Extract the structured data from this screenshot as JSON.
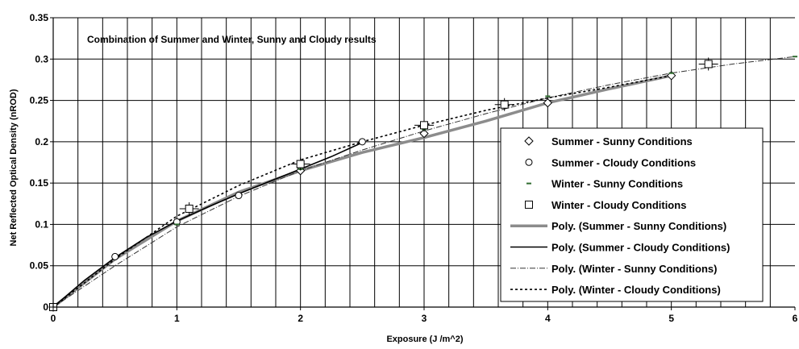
{
  "chart_data": {
    "type": "scatter",
    "annotation": "Combination of Summer and Winter, Sunny and Cloudy results",
    "xlabel": "Exposure (J /m^2)",
    "ylabel": "Net Reflected Optical Density (nROD)",
    "xlim": [
      0,
      6
    ],
    "ylim": [
      0,
      0.35
    ],
    "x_ticks": [
      0,
      1,
      2,
      3,
      4,
      5,
      6
    ],
    "x_tick_labels": [
      "0",
      "1",
      "2",
      "3",
      "4",
      "5",
      "6"
    ],
    "y_ticks": [
      0,
      0.05,
      0.1,
      0.15,
      0.2,
      0.25,
      0.3,
      0.35
    ],
    "y_tick_labels": [
      "0",
      "0.05",
      "0.1",
      "0.15",
      "0.2",
      "0.25",
      "0.3",
      "0.35"
    ],
    "grid": {
      "vertical_step": 0.2,
      "horizontal_step": 0.05
    },
    "legend_position": "right",
    "series": [
      {
        "name": "Summer - Sunny Conditions",
        "kind": "points",
        "marker": "diamond",
        "x": [
          0,
          2.0,
          3.0,
          4.0,
          5.0
        ],
        "y": [
          0,
          0.165,
          0.21,
          0.247,
          0.28
        ]
      },
      {
        "name": "Summer - Cloudy Conditions",
        "kind": "points",
        "marker": "circle",
        "x": [
          0,
          0.5,
          1.0,
          1.5,
          2.0,
          2.5
        ],
        "y": [
          0,
          0.061,
          0.103,
          0.135,
          0.17,
          0.2
        ]
      },
      {
        "name": "Winter - Sunny Conditions",
        "kind": "points",
        "marker": "dash",
        "x": [
          0,
          1.0,
          2.0,
          3.0,
          4.0,
          5.0,
          6.0
        ],
        "y": [
          0,
          0.1,
          0.167,
          0.215,
          0.255,
          0.283,
          0.303
        ]
      },
      {
        "name": "Winter - Cloudy Conditions",
        "kind": "points",
        "marker": "square",
        "x": [
          0,
          1.1,
          2.0,
          3.0,
          3.65,
          5.3
        ],
        "y": [
          0,
          0.119,
          0.173,
          0.22,
          0.245,
          0.294
        ]
      },
      {
        "name": "Poly. (Summer - Sunny Conditions)",
        "kind": "line",
        "style": "thick-gray",
        "x": [
          0,
          0.5,
          1.0,
          1.5,
          2.0,
          2.5,
          3.0,
          3.5,
          4.0,
          4.5,
          5.0
        ],
        "y": [
          0,
          0.058,
          0.104,
          0.139,
          0.165,
          0.187,
          0.205,
          0.225,
          0.247,
          0.264,
          0.28
        ]
      },
      {
        "name": "Poly. (Summer - Cloudy Conditions)",
        "kind": "line",
        "style": "solid-black",
        "x": [
          0,
          0.25,
          0.5,
          0.75,
          1.0,
          1.25,
          1.5,
          1.75,
          2.0,
          2.25,
          2.5
        ],
        "y": [
          0,
          0.032,
          0.06,
          0.084,
          0.104,
          0.121,
          0.137,
          0.152,
          0.167,
          0.182,
          0.199
        ]
      },
      {
        "name": "Poly. (Winter - Sunny Conditions)",
        "kind": "line",
        "style": "dash-dot",
        "x": [
          0,
          0.5,
          1.0,
          1.5,
          2.0,
          2.5,
          3.0,
          3.5,
          4.0,
          4.5,
          5.0,
          5.5,
          6.0
        ],
        "y": [
          0,
          0.05,
          0.097,
          0.134,
          0.165,
          0.19,
          0.213,
          0.234,
          0.253,
          0.269,
          0.283,
          0.294,
          0.303
        ]
      },
      {
        "name": "Poly. (Winter - Cloudy Conditions)",
        "kind": "line",
        "style": "dotted",
        "x": [
          0,
          0.5,
          1.0,
          1.5,
          2.0,
          2.5,
          3.0,
          3.5,
          4.0,
          4.5,
          5.0
        ],
        "y": [
          0,
          0.058,
          0.11,
          0.147,
          0.178,
          0.2,
          0.22,
          0.238,
          0.253,
          0.266,
          0.28
        ]
      }
    ]
  }
}
